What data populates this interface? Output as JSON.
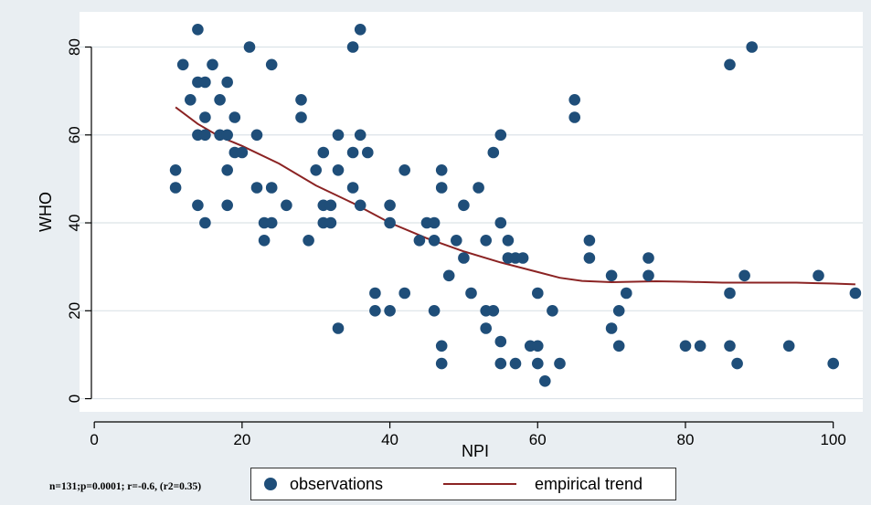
{
  "chart_data": {
    "type": "scatter",
    "xlabel": "NPI",
    "ylabel": "WHO",
    "xlim": [
      -2,
      104
    ],
    "ylim": [
      -3,
      88
    ],
    "xticks": [
      0,
      20,
      40,
      60,
      80,
      100
    ],
    "yticks": [
      0,
      20,
      40,
      60,
      80
    ],
    "grid": "horizontal",
    "legend_placement": "bottom",
    "colors": {
      "points": "#1f4e79",
      "trend": "#8b2323",
      "background": "#e9eef2",
      "plot_area": "#ffffff"
    },
    "series": [
      {
        "name": "observations",
        "type": "scatter",
        "points": [
          [
            11,
            52
          ],
          [
            11,
            48
          ],
          [
            12,
            76
          ],
          [
            13,
            68
          ],
          [
            14,
            84
          ],
          [
            14,
            72
          ],
          [
            14,
            60
          ],
          [
            14,
            44
          ],
          [
            15,
            72
          ],
          [
            15,
            64
          ],
          [
            15,
            60
          ],
          [
            15,
            40
          ],
          [
            16,
            76
          ],
          [
            17,
            68
          ],
          [
            17,
            60
          ],
          [
            18,
            72
          ],
          [
            18,
            60
          ],
          [
            18,
            52
          ],
          [
            18,
            44
          ],
          [
            19,
            64
          ],
          [
            19,
            56
          ],
          [
            20,
            56
          ],
          [
            21,
            80
          ],
          [
            22,
            60
          ],
          [
            22,
            48
          ],
          [
            23,
            40
          ],
          [
            23,
            36
          ],
          [
            24,
            76
          ],
          [
            24,
            48
          ],
          [
            24,
            40
          ],
          [
            26,
            44
          ],
          [
            28,
            68
          ],
          [
            28,
            64
          ],
          [
            29,
            36
          ],
          [
            30,
            52
          ],
          [
            31,
            56
          ],
          [
            31,
            44
          ],
          [
            31,
            40
          ],
          [
            32,
            44
          ],
          [
            32,
            40
          ],
          [
            33,
            60
          ],
          [
            33,
            52
          ],
          [
            33,
            16
          ],
          [
            35,
            80
          ],
          [
            35,
            56
          ],
          [
            35,
            48
          ],
          [
            36,
            84
          ],
          [
            36,
            60
          ],
          [
            36,
            44
          ],
          [
            37,
            56
          ],
          [
            38,
            24
          ],
          [
            38,
            20
          ],
          [
            40,
            44
          ],
          [
            40,
            40
          ],
          [
            40,
            20
          ],
          [
            42,
            52
          ],
          [
            42,
            24
          ],
          [
            44,
            36
          ],
          [
            45,
            40
          ],
          [
            46,
            40
          ],
          [
            46,
            36
          ],
          [
            46,
            20
          ],
          [
            47,
            52
          ],
          [
            47,
            48
          ],
          [
            47,
            12
          ],
          [
            47,
            8
          ],
          [
            48,
            28
          ],
          [
            49,
            36
          ],
          [
            50,
            44
          ],
          [
            50,
            32
          ],
          [
            51,
            24
          ],
          [
            52,
            48
          ],
          [
            53,
            36
          ],
          [
            53,
            20
          ],
          [
            53,
            16
          ],
          [
            54,
            56
          ],
          [
            54,
            20
          ],
          [
            55,
            60
          ],
          [
            55,
            40
          ],
          [
            55,
            13
          ],
          [
            55,
            8
          ],
          [
            56,
            36
          ],
          [
            56,
            32
          ],
          [
            57,
            32
          ],
          [
            57,
            8
          ],
          [
            58,
            32
          ],
          [
            59,
            12
          ],
          [
            60,
            24
          ],
          [
            60,
            12
          ],
          [
            60,
            8
          ],
          [
            61,
            4
          ],
          [
            62,
            20
          ],
          [
            63,
            8
          ],
          [
            65,
            68
          ],
          [
            65,
            64
          ],
          [
            67,
            36
          ],
          [
            67,
            32
          ],
          [
            70,
            28
          ],
          [
            70,
            16
          ],
          [
            71,
            20
          ],
          [
            71,
            12
          ],
          [
            72,
            24
          ],
          [
            75,
            32
          ],
          [
            75,
            28
          ],
          [
            80,
            12
          ],
          [
            82,
            12
          ],
          [
            86,
            76
          ],
          [
            86,
            24
          ],
          [
            86,
            12
          ],
          [
            87,
            8
          ],
          [
            88,
            28
          ],
          [
            89,
            80
          ],
          [
            94,
            12
          ],
          [
            98,
            28
          ],
          [
            100,
            8
          ],
          [
            103,
            24
          ]
        ]
      },
      {
        "name": "empirical trend",
        "type": "line",
        "points": [
          [
            11,
            66.3
          ],
          [
            14,
            62.5
          ],
          [
            17,
            59.6
          ],
          [
            20,
            57.5
          ],
          [
            25,
            53.5
          ],
          [
            30,
            48.5
          ],
          [
            35,
            44.5
          ],
          [
            40,
            40
          ],
          [
            45,
            36.5
          ],
          [
            50,
            33.5
          ],
          [
            55,
            31
          ],
          [
            60,
            28.8
          ],
          [
            63,
            27.5
          ],
          [
            66,
            26.8
          ],
          [
            70,
            26.5
          ],
          [
            73,
            26.6
          ],
          [
            76,
            26.7
          ],
          [
            80,
            26.6
          ],
          [
            85,
            26.4
          ],
          [
            90,
            26.4
          ],
          [
            95,
            26.4
          ],
          [
            100,
            26.2
          ],
          [
            103,
            26
          ]
        ]
      }
    ],
    "note": "n=131;p=0.0001; r=-0.6, (r2=0.35)"
  }
}
